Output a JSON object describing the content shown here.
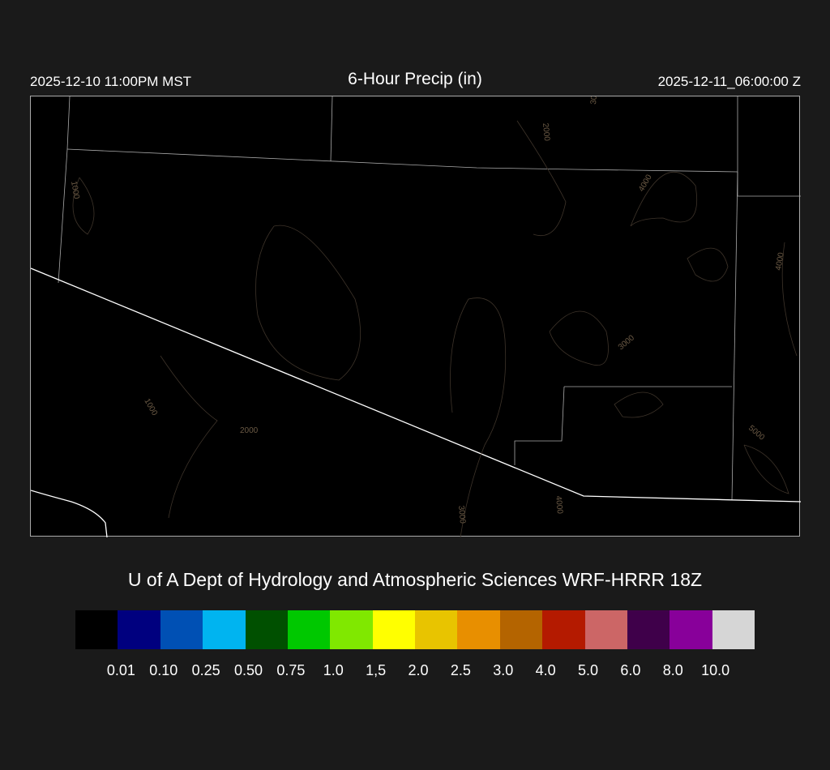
{
  "header": {
    "left_time": "2025-12-10 11:00PM MST",
    "title": "6-Hour Precip (in)",
    "right_time": "2025-12-11_06:00:00 Z"
  },
  "map": {
    "contour_labels": [
      "1000",
      "2000",
      "3000",
      "4000",
      "5000"
    ],
    "contour_color": "#6b5a45",
    "boundary_color": "#ffffff",
    "background": "#000000"
  },
  "credit": "U of A Dept of Hydrology and Atmospheric Sciences WRF-HRRR 18Z",
  "colorbar": {
    "colors": [
      "#000000",
      "#00007f",
      "#0050b4",
      "#00b4f0",
      "#005000",
      "#00c800",
      "#80e800",
      "#ffff00",
      "#e8c400",
      "#e88f00",
      "#b46400",
      "#b41a00",
      "#cc6666",
      "#3f004a",
      "#88009a",
      "#d6d6d6"
    ],
    "labels": [
      "0.01",
      "0.10",
      "0.25",
      "0.50",
      "0.75",
      "1.0",
      "1,5",
      "2.0",
      "2.5",
      "3.0",
      "4.0",
      "5.0",
      "6.0",
      "8.0",
      "10.0"
    ]
  }
}
